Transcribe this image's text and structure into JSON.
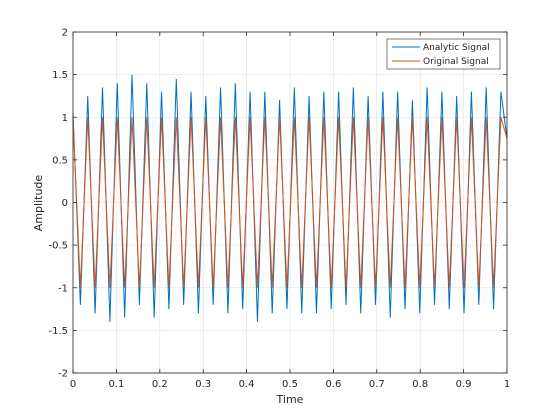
{
  "chart_data": {
    "type": "line",
    "title": "",
    "xlabel": "Time",
    "ylabel": "Amplitude",
    "xlim": [
      0,
      1
    ],
    "ylim": [
      -2,
      2
    ],
    "xticks": [
      0,
      0.1,
      0.2,
      0.3,
      0.4,
      0.5,
      0.6,
      0.7,
      0.8,
      0.9,
      1
    ],
    "xtick_labels": [
      "0",
      "0.1",
      "0.2",
      "0.3",
      "0.4",
      "0.5",
      "0.6",
      "0.7",
      "0.8",
      "0.9",
      "1"
    ],
    "yticks": [
      -2,
      -1.5,
      -1,
      -0.5,
      0,
      0.5,
      1,
      1.5,
      2
    ],
    "ytick_labels": [
      "-2",
      "-1.5",
      "-1",
      "-0.5",
      "0",
      "0.5",
      "1",
      "1.5",
      "2"
    ],
    "grid": true,
    "legend_position": "top-right",
    "series": [
      {
        "name": "Analytic Signal",
        "color": "#0072bd",
        "x": [
          0,
          0.017,
          0.034,
          0.051,
          0.068,
          0.085,
          0.102,
          0.119,
          0.136,
          0.153,
          0.17,
          0.187,
          0.204,
          0.221,
          0.238,
          0.255,
          0.272,
          0.289,
          0.306,
          0.323,
          0.34,
          0.357,
          0.374,
          0.391,
          0.408,
          0.425,
          0.442,
          0.459,
          0.476,
          0.493,
          0.51,
          0.527,
          0.544,
          0.561,
          0.578,
          0.595,
          0.612,
          0.629,
          0.646,
          0.663,
          0.68,
          0.697,
          0.714,
          0.731,
          0.748,
          0.765,
          0.782,
          0.799,
          0.816,
          0.833,
          0.85,
          0.867,
          0.884,
          0.901,
          0.918,
          0.935,
          0.952,
          0.969,
          0.986,
          1.0
        ],
        "values": [
          1.05,
          -1.2,
          1.25,
          -1.3,
          1.35,
          -1.4,
          1.4,
          -1.35,
          1.5,
          -1.2,
          1.4,
          -1.35,
          1.3,
          -1.25,
          1.45,
          -1.2,
          1.3,
          -1.3,
          1.25,
          -1.2,
          1.35,
          -1.3,
          1.4,
          -1.25,
          1.3,
          -1.4,
          1.3,
          -1.3,
          1.2,
          -1.25,
          1.35,
          -1.3,
          1.25,
          -1.3,
          1.3,
          -1.25,
          1.3,
          -1.2,
          1.35,
          -1.3,
          1.25,
          -1.2,
          1.3,
          -1.35,
          1.3,
          -1.25,
          1.2,
          -1.3,
          1.35,
          -1.2,
          1.3,
          -1.25,
          1.25,
          -1.3,
          1.3,
          -1.2,
          1.35,
          -1.25,
          1.3,
          0.75
        ]
      },
      {
        "name": "Original Signal",
        "color": "#d95319",
        "x": [
          0,
          0.017,
          0.034,
          0.051,
          0.068,
          0.085,
          0.102,
          0.119,
          0.136,
          0.153,
          0.17,
          0.187,
          0.204,
          0.221,
          0.238,
          0.255,
          0.272,
          0.289,
          0.306,
          0.323,
          0.34,
          0.357,
          0.374,
          0.391,
          0.408,
          0.425,
          0.442,
          0.459,
          0.476,
          0.493,
          0.51,
          0.527,
          0.544,
          0.561,
          0.578,
          0.595,
          0.612,
          0.629,
          0.646,
          0.663,
          0.68,
          0.697,
          0.714,
          0.731,
          0.748,
          0.765,
          0.782,
          0.799,
          0.816,
          0.833,
          0.85,
          0.867,
          0.884,
          0.901,
          0.918,
          0.935,
          0.952,
          0.969,
          0.986,
          1.0
        ],
        "values": [
          1,
          -1,
          1,
          -1,
          1,
          -1,
          1,
          -1,
          1,
          -1,
          1,
          -1,
          1,
          -1,
          1,
          -1,
          1,
          -1,
          1,
          -1,
          1,
          -1,
          1,
          -1,
          1,
          -1,
          1,
          -1,
          1,
          -1,
          1,
          -1,
          1,
          -1,
          1,
          -1,
          1,
          -1,
          1,
          -1,
          1,
          -1,
          1,
          -1,
          1,
          -1,
          1,
          -1,
          1,
          -1,
          1,
          -1,
          1,
          -1,
          1,
          -1,
          1,
          -1,
          1,
          0.75
        ]
      }
    ]
  }
}
